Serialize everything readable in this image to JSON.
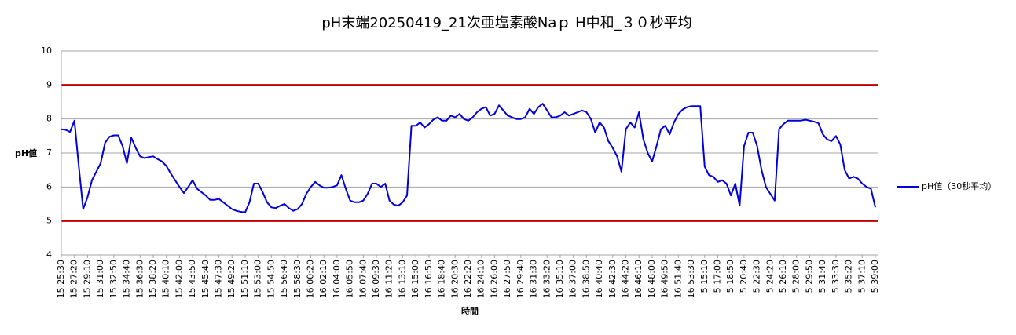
{
  "chart_data": {
    "type": "line",
    "title": "pH末端20250419_21次亜塩素酸Naｐ H中和_３０秒平均",
    "x_label": "時間",
    "y_label": "pH値",
    "ylim": [
      4,
      10
    ],
    "yticks": [
      4,
      5,
      6,
      7,
      8,
      9,
      10
    ],
    "grid": true,
    "legend": "right",
    "reference_lines": [
      {
        "value": 9,
        "color": "#c00000"
      },
      {
        "value": 5,
        "color": "#c00000"
      }
    ],
    "categories": [
      "15:25:30",
      null,
      null,
      "15:27:20",
      null,
      null,
      "15:29:10",
      null,
      null,
      "15:31:00",
      null,
      null,
      "15:32:50",
      null,
      null,
      "15:34:40",
      null,
      null,
      "15:36:30",
      null,
      null,
      "15:38:20",
      null,
      null,
      "15:40:10",
      null,
      null,
      "15:42:00",
      null,
      null,
      "15:43:50",
      null,
      null,
      "15:45:40",
      null,
      null,
      "15:47:30",
      null,
      null,
      "15:49:20",
      null,
      null,
      "15:51:10",
      null,
      null,
      "15:53:00",
      null,
      null,
      "15:54:50",
      null,
      null,
      "15:56:40",
      null,
      null,
      "15:58:30",
      null,
      null,
      "16:00:20",
      null,
      null,
      "16:02:10",
      null,
      null,
      "16:04:00",
      null,
      null,
      "16:05:50",
      null,
      null,
      "16:07:40",
      null,
      null,
      "16:09:30",
      null,
      null,
      "16:11:20",
      null,
      null,
      "16:13:10",
      null,
      null,
      "16:15:00",
      null,
      null,
      "16:16:50",
      null,
      null,
      "16:18:40",
      null,
      null,
      "16:20:30",
      null,
      null,
      "16:22:20",
      null,
      null,
      "16:24:10",
      null,
      null,
      "16:26:00",
      null,
      null,
      "16:27:50",
      null,
      null,
      "16:29:40",
      null,
      null,
      "16:31:30",
      null,
      null,
      "16:33:20",
      null,
      null,
      "16:35:10",
      null,
      null,
      "16:37:00",
      null,
      null,
      "16:38:50",
      null,
      null,
      "16:40:40",
      null,
      null,
      "16:42:30",
      null,
      null,
      "16:44:20",
      null,
      null,
      "16:46:10",
      null,
      null,
      "16:48:00",
      null,
      null,
      "16:49:50",
      null,
      null,
      "16:51:40",
      null,
      null,
      "16:53:30",
      null,
      null,
      "5:15:10",
      null,
      null,
      "5:17:00",
      null,
      null,
      "5:18:50",
      null,
      null,
      "5:20:40",
      null,
      null,
      "5:22:30",
      null,
      null,
      "5:24:20",
      null,
      null,
      "5:26:10",
      null,
      null,
      "5:28:00",
      null,
      null,
      "5:29:50",
      null,
      null,
      "5:31:40",
      null,
      null,
      "5:33:30",
      null,
      null,
      "5:35:20",
      null,
      null,
      "5:37:10",
      null,
      null,
      "5:39:00"
    ],
    "series": [
      {
        "name": "pH値（30秒平均）",
        "color": "#0000dd",
        "values": [
          7.7,
          7.68,
          7.62,
          7.95,
          6.6,
          5.35,
          5.7,
          6.2,
          6.45,
          6.7,
          7.3,
          7.48,
          7.52,
          7.52,
          7.2,
          6.7,
          7.45,
          7.15,
          6.9,
          6.85,
          6.88,
          6.9,
          6.82,
          6.75,
          6.62,
          6.4,
          6.2,
          6.0,
          5.82,
          6.0,
          6.2,
          5.95,
          5.85,
          5.75,
          5.62,
          5.62,
          5.65,
          5.55,
          5.45,
          5.35,
          5.3,
          5.27,
          5.25,
          5.55,
          6.1,
          6.1,
          5.85,
          5.55,
          5.4,
          5.38,
          5.45,
          5.5,
          5.38,
          5.3,
          5.35,
          5.5,
          5.8,
          6.0,
          6.15,
          6.05,
          5.98,
          5.98,
          6.0,
          6.05,
          6.35,
          5.95,
          5.6,
          5.55,
          5.55,
          5.6,
          5.8,
          6.1,
          6.1,
          6.0,
          6.1,
          5.6,
          5.48,
          5.45,
          5.55,
          5.75,
          7.8,
          7.8,
          7.9,
          7.75,
          7.85,
          7.98,
          8.05,
          7.95,
          7.95,
          8.1,
          8.05,
          8.15,
          8.0,
          7.95,
          8.05,
          8.2,
          8.3,
          8.35,
          8.1,
          8.15,
          8.4,
          8.25,
          8.1,
          8.05,
          8.0,
          8.0,
          8.05,
          8.3,
          8.15,
          8.35,
          8.45,
          8.25,
          8.05,
          8.05,
          8.1,
          8.2,
          8.1,
          8.15,
          8.2,
          8.25,
          8.2,
          8.0,
          7.6,
          7.9,
          7.75,
          7.35,
          7.15,
          6.9,
          6.45,
          7.7,
          7.9,
          7.75,
          8.2,
          7.4,
          7.0,
          6.75,
          7.2,
          7.7,
          7.8,
          7.55,
          7.9,
          8.15,
          8.28,
          8.35,
          8.38,
          8.38,
          8.38,
          6.6,
          6.35,
          6.3,
          6.15,
          6.2,
          6.1,
          5.75,
          6.1,
          5.45,
          7.2,
          7.6,
          7.6,
          7.2,
          6.5,
          6.0,
          5.8,
          5.6,
          7.7,
          7.85,
          7.95,
          7.95,
          7.95,
          7.95,
          7.98,
          7.95,
          7.92,
          7.88,
          7.55,
          7.4,
          7.35,
          7.5,
          7.25,
          6.5,
          6.25,
          6.3,
          6.25,
          6.1,
          6.0,
          5.95,
          5.4
        ]
      }
    ]
  }
}
